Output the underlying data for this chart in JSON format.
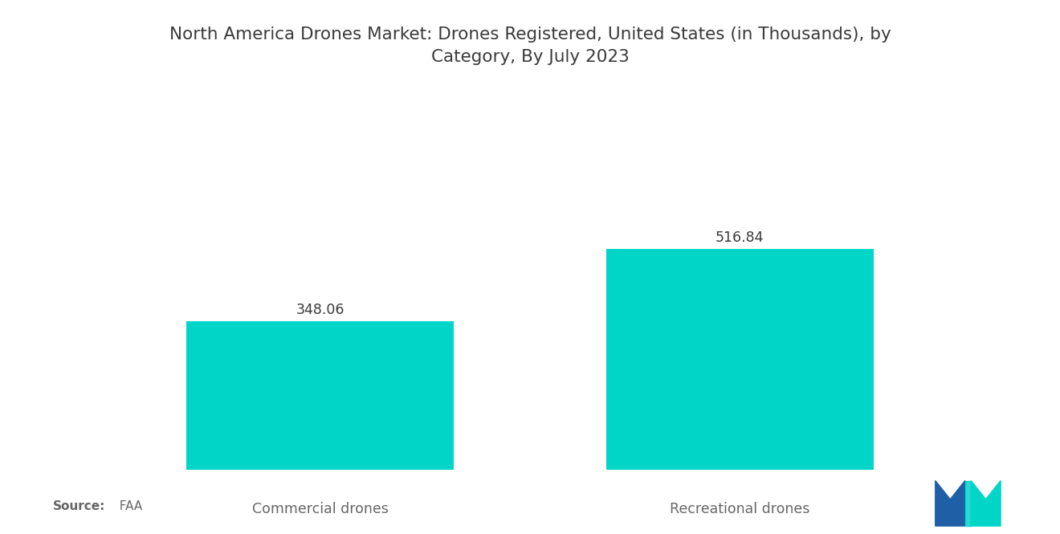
{
  "title": "North America Drones Market: Drones Registered, United States (in Thousands), by\nCategory, By July 2023",
  "categories": [
    "Commercial drones",
    "Recreational drones"
  ],
  "values": [
    348.06,
    516.84
  ],
  "bar_color": "#00D5C8",
  "bar_width": 0.28,
  "bar_positions": [
    0.28,
    0.72
  ],
  "value_labels": [
    "348.06",
    "516.84"
  ],
  "ylim": [
    0,
    650
  ],
  "xlim": [
    0.0,
    1.0
  ],
  "background_color": "#ffffff",
  "title_fontsize": 15.5,
  "label_fontsize": 12.5,
  "value_fontsize": 12.5,
  "source_bold": "Source:",
  "source_normal": "  FAA",
  "source_fontsize": 11,
  "title_color": "#3a3a3a",
  "label_color": "#666666",
  "value_color": "#3a3a3a",
  "logo_blue": "#1f5fa6",
  "logo_teal": "#00D5C8"
}
